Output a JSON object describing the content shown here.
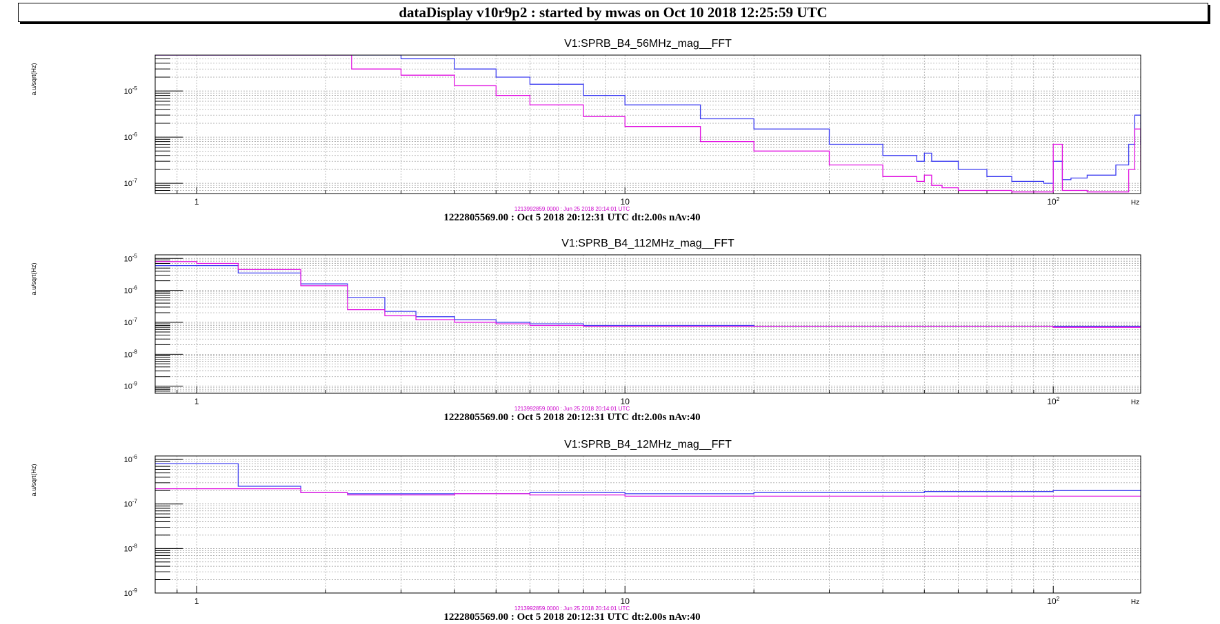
{
  "window_title": "dataDisplay v10r9p2 : started by mwas on Oct 10 2018 12:25:59 UTC",
  "colors": {
    "current": "#3b3bf0",
    "reference": "#e010e0",
    "stamp_reference": "#cc00cc"
  },
  "chart_data": [
    {
      "type": "line",
      "title": "V1:SPRB_B4_56MHz_mag__FFT",
      "ylabel": "a.u/sqrt(Hz)",
      "xlabel": "Hz",
      "x_scale": "log",
      "y_scale": "log",
      "xlim": [
        0.8,
        160
      ],
      "ylim": [
        6e-08,
        6e-05
      ],
      "x_ticks": [
        {
          "v": 1,
          "label": "1"
        },
        {
          "v": 10,
          "label": "10"
        },
        {
          "v": 100,
          "label": "10",
          "sup": "2"
        }
      ],
      "y_ticks": [
        {
          "v": 1e-07,
          "base": "10",
          "sup": "-7"
        },
        {
          "v": 1e-06,
          "base": "10",
          "sup": "-6"
        },
        {
          "v": 1e-05,
          "base": "10",
          "sup": "-5"
        }
      ],
      "grid": true,
      "stamp_reference": "1213992859.0000 : Jun 25 2018 20:14:01 UTC",
      "stamp_current": "1222805569.00 : Oct  5 2018 20:12:31 UTC dt:2.00s nAv:40",
      "series": [
        {
          "role": "current",
          "x": [
            0.8,
            1,
            2,
            2.6,
            3,
            4,
            5,
            6,
            8,
            10,
            15,
            20,
            30,
            40,
            48,
            50,
            52,
            60,
            70,
            80,
            95,
            100,
            105,
            110,
            120,
            140,
            150,
            155,
            160,
            165,
            175
          ],
          "y": [
            6e-05,
            6e-05,
            6e-05,
            6e-05,
            5e-05,
            3e-05,
            2e-05,
            1.4e-05,
            8e-06,
            5e-06,
            2.5e-06,
            1.5e-06,
            7e-07,
            4e-07,
            3e-07,
            4.5e-07,
            3e-07,
            2e-07,
            1.4e-07,
            1.1e-07,
            1e-07,
            3e-07,
            1.2e-07,
            1.3e-07,
            1.5e-07,
            2.5e-07,
            7e-07,
            3e-06,
            7e-07,
            3e-07,
            1.8e-07
          ]
        },
        {
          "role": "reference",
          "x": [
            0.8,
            1,
            2.2,
            2.3,
            3,
            4,
            5,
            6,
            8,
            10,
            15,
            20,
            30,
            40,
            48,
            50,
            52,
            55,
            60,
            70,
            80,
            95,
            100,
            105,
            120,
            140,
            150,
            155,
            160,
            165,
            175
          ],
          "y": [
            6e-05,
            6e-05,
            6e-05,
            3e-05,
            2.2e-05,
            1.3e-05,
            8e-06,
            5e-06,
            2.8e-06,
            1.7e-06,
            8e-07,
            5e-07,
            2.5e-07,
            1.4e-07,
            1.1e-07,
            1.5e-07,
            9e-08,
            8e-08,
            7e-08,
            7e-08,
            6.5e-08,
            6.5e-08,
            7e-07,
            7e-08,
            6.5e-08,
            6.5e-08,
            2e-07,
            1.5e-06,
            2e-07,
            7e-08,
            6.5e-08
          ]
        }
      ]
    },
    {
      "type": "line",
      "title": "V1:SPRB_B4_112MHz_mag__FFT",
      "ylabel": "a.u/sqrt(Hz)",
      "xlabel": "Hz",
      "x_scale": "log",
      "y_scale": "log",
      "xlim": [
        0.8,
        160
      ],
      "ylim": [
        6e-10,
        1.3e-05
      ],
      "x_ticks": [
        {
          "v": 1,
          "label": "1"
        },
        {
          "v": 10,
          "label": "10"
        },
        {
          "v": 100,
          "label": "10",
          "sup": "2"
        }
      ],
      "y_ticks": [
        {
          "v": 1e-09,
          "base": "10",
          "sup": "-9"
        },
        {
          "v": 1e-08,
          "base": "10",
          "sup": "-8"
        },
        {
          "v": 1e-07,
          "base": "10",
          "sup": "-7"
        },
        {
          "v": 1e-06,
          "base": "10",
          "sup": "-6"
        },
        {
          "v": 1e-05,
          "base": "10",
          "sup": "-5"
        }
      ],
      "grid": true,
      "stamp_reference": "1213992859.0000 : Jun 25 2018 20:14:01 UTC",
      "stamp_current": "1222805569.00 : Oct  5 2018 20:12:31 UTC dt:2.00s nAv:40",
      "series": [
        {
          "role": "current",
          "x": [
            0.8,
            1,
            1.25,
            1.75,
            2.25,
            2.75,
            3.25,
            4,
            5,
            6,
            8,
            10,
            20,
            50,
            100,
            160
          ],
          "y": [
            6e-06,
            6e-06,
            3.5e-06,
            1.6e-06,
            6e-07,
            2.2e-07,
            1.5e-07,
            1.2e-07,
            1e-07,
            9e-08,
            8e-08,
            8e-08,
            7.5e-08,
            7.5e-08,
            7.5e-08,
            7.5e-08
          ]
        },
        {
          "role": "reference",
          "x": [
            0.8,
            1,
            1.25,
            1.75,
            2.25,
            2.75,
            3.25,
            4,
            5,
            6,
            8,
            10,
            20,
            50,
            100,
            160
          ],
          "y": [
            8e-06,
            7e-06,
            4.5e-06,
            1.4e-06,
            2.5e-07,
            1.6e-07,
            1.2e-07,
            1e-07,
            9e-08,
            8e-08,
            7.5e-08,
            7.5e-08,
            7.5e-08,
            7.5e-08,
            7e-08,
            7e-08
          ]
        }
      ]
    },
    {
      "type": "line",
      "title": "V1:SPRB_B4_12MHz_mag__FFT",
      "ylabel": "a.u/sqrt(Hz)",
      "xlabel": "Hz",
      "x_scale": "log",
      "y_scale": "log",
      "xlim": [
        0.8,
        160
      ],
      "ylim": [
        1e-09,
        1.2e-06
      ],
      "x_ticks": [
        {
          "v": 1,
          "label": "1"
        },
        {
          "v": 10,
          "label": "10"
        },
        {
          "v": 100,
          "label": "10",
          "sup": "2"
        }
      ],
      "y_ticks": [
        {
          "v": 1e-09,
          "base": "10",
          "sup": "-9"
        },
        {
          "v": 1e-08,
          "base": "10",
          "sup": "-8"
        },
        {
          "v": 1e-07,
          "base": "10",
          "sup": "-7"
        },
        {
          "v": 1e-06,
          "base": "10",
          "sup": "-6"
        }
      ],
      "grid": true,
      "stamp_reference": "1213992859.0000 : Jun 25 2018 20:14:01 UTC",
      "stamp_current": "1222805569.00 : Oct  5 2018 20:12:31 UTC dt:2.00s nAv:40",
      "series": [
        {
          "role": "current",
          "x": [
            0.8,
            1,
            1.25,
            1.75,
            2.25,
            3,
            4,
            6,
            10,
            20,
            50,
            100,
            160
          ],
          "y": [
            8e-07,
            8e-07,
            2.5e-07,
            1.8e-07,
            1.7e-07,
            1.7e-07,
            1.7e-07,
            1.8e-07,
            1.7e-07,
            1.8e-07,
            1.9e-07,
            2e-07,
            2.1e-07
          ]
        },
        {
          "role": "reference",
          "x": [
            0.8,
            1,
            1.25,
            1.75,
            2.25,
            3,
            4,
            6,
            10,
            20,
            50,
            100,
            160
          ],
          "y": [
            2.2e-07,
            2.2e-07,
            2.2e-07,
            1.8e-07,
            1.6e-07,
            1.6e-07,
            1.7e-07,
            1.6e-07,
            1.5e-07,
            1.5e-07,
            1.5e-07,
            1.5e-07,
            1.5e-07
          ]
        }
      ]
    }
  ]
}
